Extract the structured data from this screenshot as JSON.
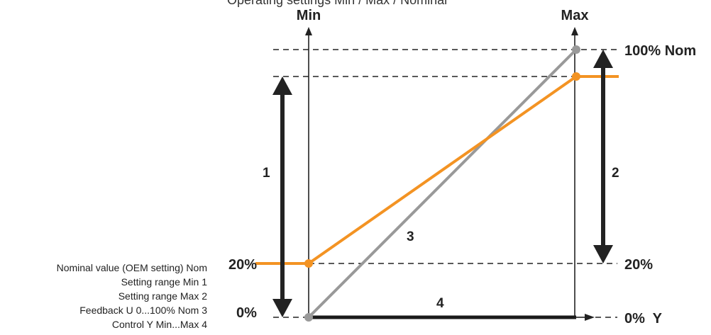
{
  "title": "Operating settings Min / Max / Nominal",
  "axis_labels": {
    "min": "Min",
    "max": "Max",
    "nom_100": "100% Nom",
    "left_20": "20%",
    "left_0": "0%",
    "right_20": "20%",
    "right_0_y": "0%  Y"
  },
  "markers": {
    "m1": "1",
    "m2": "2",
    "m3": "3",
    "m4": "4"
  },
  "legend": [
    "Nominal value (OEM setting) Nom",
    "Setting range Min 1",
    "Setting range Max 2",
    "Feedback U 0...100% Nom 3",
    "Control Y Min...Max 4"
  ],
  "colors": {
    "setting_curve": "#f39323",
    "feedback_line": "#999999",
    "control_bar": "#1a1a1a",
    "arrows": "#222222",
    "dashed": "#222222"
  }
}
